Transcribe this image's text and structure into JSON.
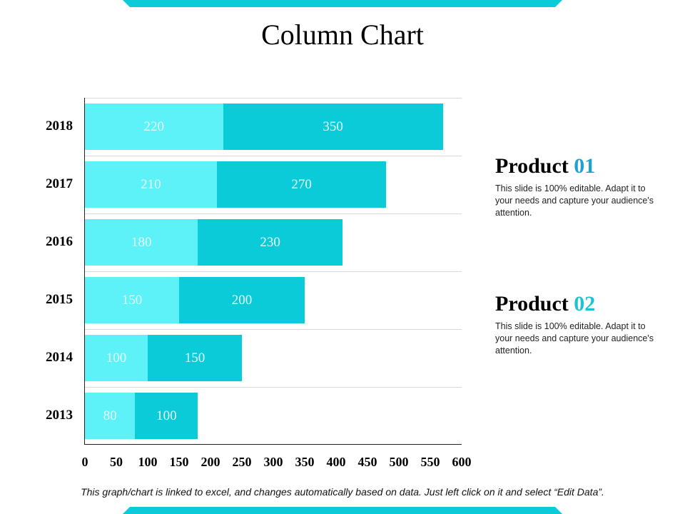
{
  "slide": {
    "title": "Column Chart",
    "accent_color": "#0ccbd9",
    "footnote": "This graph/chart is linked to excel, and changes automatically based on data. Just left click on it and select “Edit Data”."
  },
  "products": [
    {
      "label": "Product",
      "number": "01",
      "number_color": "#1ea0d6",
      "description": "This slide is 100% editable. Adapt it to your needs and capture your audience's attention."
    },
    {
      "label": "Product",
      "number": "02",
      "number_color": "#1cc4d2",
      "description": "This slide is 100% editable. Adapt it to your needs and capture your audience's attention."
    }
  ],
  "chart_data": {
    "type": "bar",
    "orientation": "horizontal",
    "stacked": true,
    "title": "Column Chart",
    "categories": [
      "2018",
      "2017",
      "2016",
      "2015",
      "2014",
      "2013"
    ],
    "series": [
      {
        "name": "Product 01",
        "color": "#5cf2f8",
        "values": [
          220,
          210,
          180,
          150,
          100,
          80
        ]
      },
      {
        "name": "Product 02",
        "color": "#0bcbd8",
        "values": [
          350,
          270,
          230,
          200,
          150,
          100
        ]
      }
    ],
    "xlabel": "",
    "ylabel": "",
    "xlim": [
      0,
      600
    ],
    "x_ticks": [
      "0",
      "50",
      "100",
      "150",
      "200",
      "250",
      "300",
      "350",
      "400",
      "450",
      "500",
      "550",
      "600"
    ],
    "grid": true,
    "data_labels": true,
    "legend": "none"
  }
}
